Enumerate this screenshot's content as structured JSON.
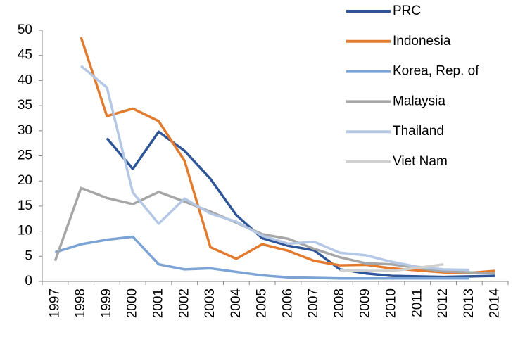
{
  "chart_data": {
    "type": "line",
    "categories": [
      "1997",
      "1998",
      "1999",
      "2000",
      "2001",
      "2002",
      "2003",
      "2004",
      "2005",
      "2006",
      "2007",
      "2008",
      "2009",
      "2010",
      "2011",
      "2012",
      "2013",
      "2014"
    ],
    "ylim": [
      0,
      50
    ],
    "yticks": [
      0,
      5,
      10,
      15,
      20,
      25,
      30,
      35,
      40,
      45,
      50
    ],
    "legend": "top-right",
    "series": [
      {
        "name": "PRC",
        "color": "#2e5597",
        "values": [
          null,
          null,
          28.5,
          22.4,
          29.8,
          26.0,
          20.4,
          13.2,
          8.6,
          7.1,
          6.2,
          2.4,
          1.6,
          1.1,
          1.0,
          0.9,
          1.0,
          1.1
        ]
      },
      {
        "name": "Indonesia",
        "color": "#e37b2f",
        "values": [
          null,
          48.6,
          32.9,
          34.4,
          31.9,
          24.0,
          6.8,
          4.5,
          7.4,
          6.1,
          4.1,
          3.2,
          3.3,
          2.6,
          2.2,
          1.8,
          1.7,
          2.1
        ]
      },
      {
        "name": "Korea, Rep. of",
        "color": "#7ba3d6",
        "values": [
          5.8,
          7.4,
          8.3,
          8.9,
          3.4,
          2.4,
          2.6,
          1.9,
          1.2,
          0.8,
          0.7,
          0.6,
          0.6,
          0.6,
          0.6,
          0.6,
          0.6,
          null
        ]
      },
      {
        "name": "Malaysia",
        "color": "#a6a6a6",
        "values": [
          4.1,
          18.6,
          16.6,
          15.4,
          17.8,
          15.9,
          13.9,
          11.7,
          9.4,
          8.5,
          6.5,
          4.8,
          3.6,
          3.4,
          2.7,
          2.0,
          1.8,
          1.6
        ]
      },
      {
        "name": "Thailand",
        "color": "#b4c8e6",
        "values": [
          null,
          42.9,
          38.6,
          17.7,
          11.5,
          16.5,
          13.5,
          11.9,
          9.1,
          7.5,
          7.9,
          5.7,
          5.2,
          3.9,
          2.9,
          2.4,
          2.3,
          null
        ]
      },
      {
        "name": "Viet Nam",
        "color": "#d0d0d0",
        "values": [
          null,
          null,
          null,
          null,
          null,
          null,
          null,
          null,
          null,
          null,
          null,
          2.2,
          2.1,
          2.1,
          2.7,
          3.4,
          null,
          null
        ]
      }
    ]
  }
}
